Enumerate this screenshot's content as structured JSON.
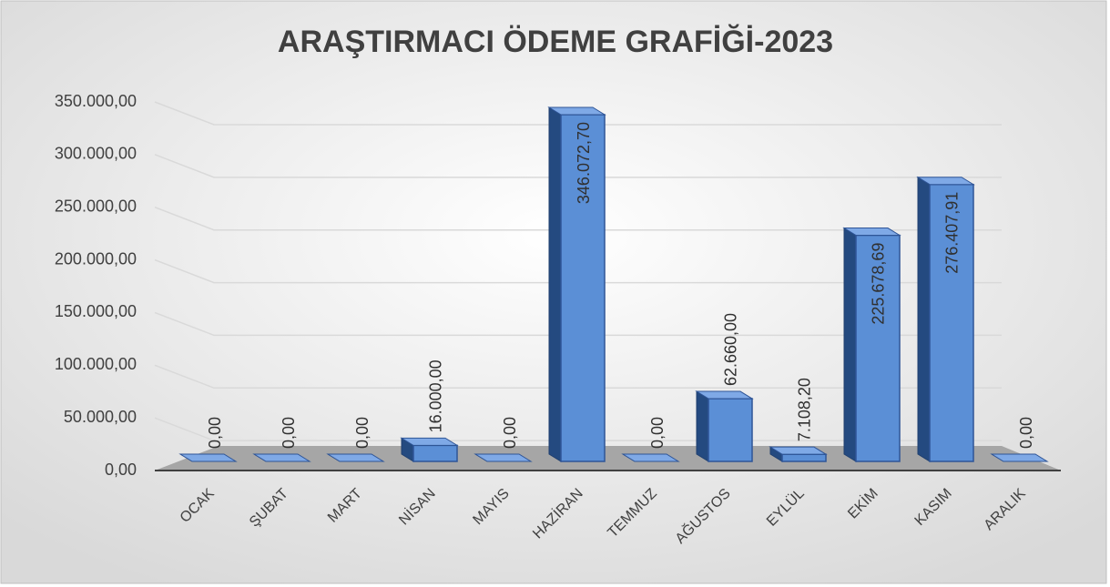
{
  "chart_data": {
    "type": "bar3d",
    "title": "ARAŞTIRMACI ÖDEME GRAFİĞİ-2023",
    "categories": [
      "OCAK",
      "ŞUBAT",
      "MART",
      "NİSAN",
      "MAYIS",
      "HAZİRAN",
      "TEMMUZ",
      "AĞUSTOS",
      "EYLÜL",
      "EKİM",
      "KASIM",
      "ARALIK"
    ],
    "values": [
      0,
      0,
      0,
      16000,
      0,
      346072.7,
      0,
      62660,
      7108.2,
      225678.69,
      276407.91,
      0
    ],
    "value_labels": [
      "0,00",
      "0,00",
      "0,00",
      "16.000,00",
      "0,00",
      "346.072,70",
      "0,00",
      "62.660,00",
      "7.108,20",
      "225.678,69",
      "276.407,91",
      "0,00"
    ],
    "color": "#5b8fd6",
    "ylim": [
      0,
      350000
    ],
    "yticks": [
      {
        "value": 0,
        "label": "0,00"
      },
      {
        "value": 50000,
        "label": "50.000,00"
      },
      {
        "value": 100000,
        "label": "100.000,00"
      },
      {
        "value": 150000,
        "label": "150.000,00"
      },
      {
        "value": 200000,
        "label": "200.000,00"
      },
      {
        "value": 250000,
        "label": "250.000,00"
      },
      {
        "value": 300000,
        "label": "300.000,00"
      },
      {
        "value": 350000,
        "label": "350.000,00"
      }
    ],
    "grid": true
  }
}
